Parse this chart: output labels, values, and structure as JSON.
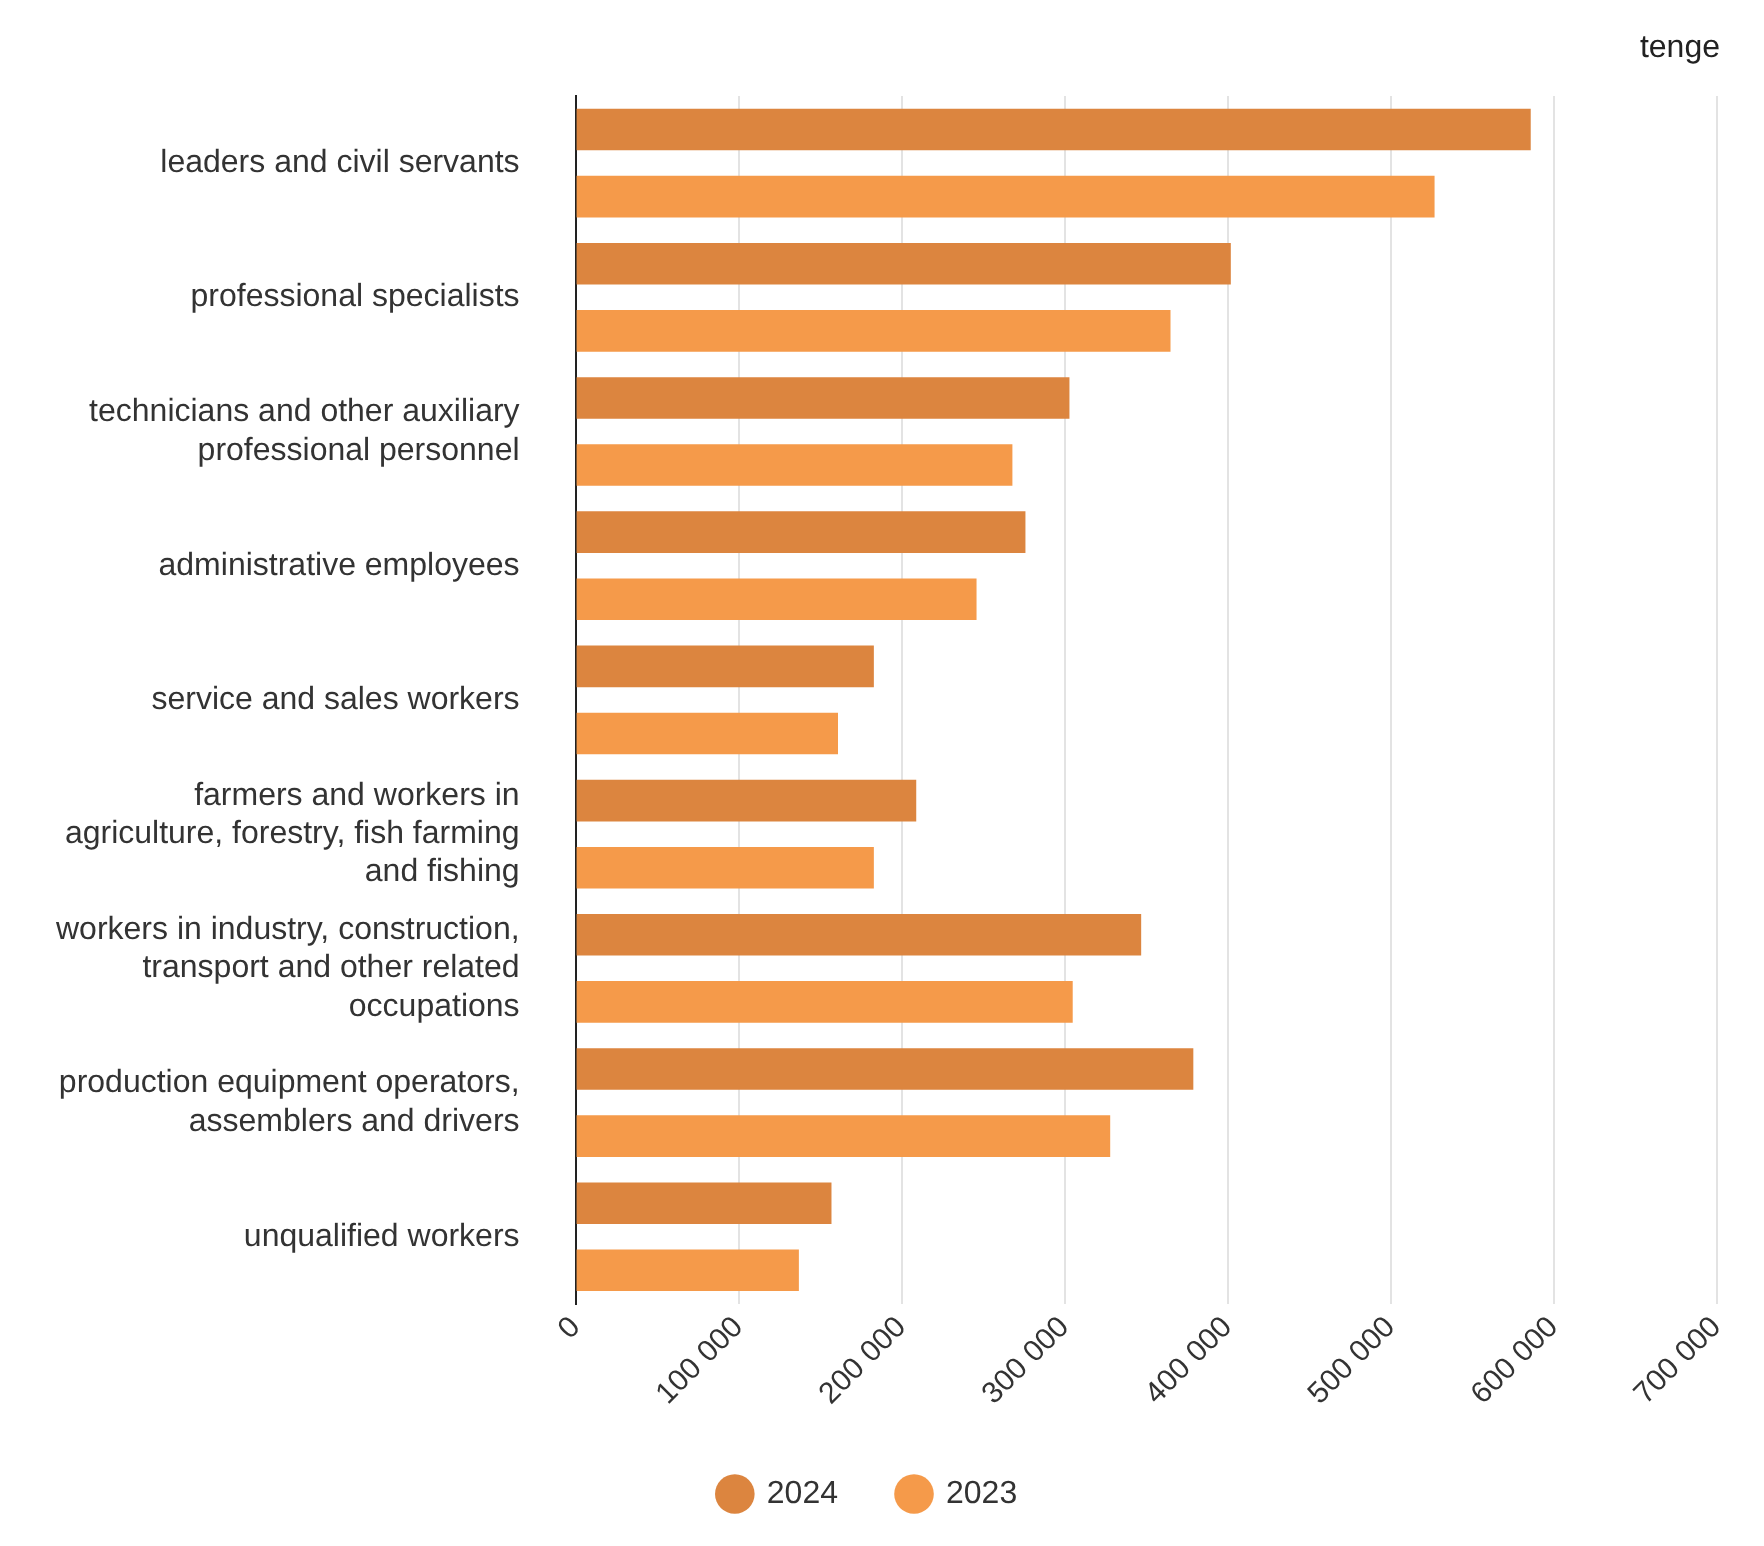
{
  "chart_data": {
    "type": "bar",
    "orientation": "horizontal",
    "xlabel": "tenge",
    "categories": [
      "leaders and civil servants",
      "professional specialists",
      "technicians and other auxiliary\nprofessional personnel",
      "administrative employees",
      "service and sales workers",
      "farmers and workers in\nagriculture, forestry, fish farming\nand fishing",
      "workers in industry, construction,\ntransport and other related\noccupations",
      "production equipment operators,\nassemblers and drivers",
      "unqualified workers"
    ],
    "series": [
      {
        "name": "2024",
        "color": "#dc853f",
        "values": [
          586000,
          402000,
          303000,
          276000,
          183000,
          209000,
          347000,
          379000,
          157000
        ]
      },
      {
        "name": "2023",
        "color": "#f59a4a",
        "values": [
          527000,
          365000,
          268000,
          246000,
          161000,
          183000,
          305000,
          328000,
          137000
        ]
      }
    ],
    "xlim": [
      0,
      700000
    ],
    "xticks": [
      0,
      {
        "value": 100000,
        "label": "100 000"
      },
      {
        "value": 200000,
        "label": "200 000"
      },
      {
        "value": 300000,
        "label": "300 000"
      },
      {
        "value": 400000,
        "label": "400 000"
      },
      {
        "value": 500000,
        "label": "500 000"
      },
      {
        "value": 600000,
        "label": "600 000"
      },
      {
        "value": 700000,
        "label": "700 000"
      }
    ],
    "grid": "x",
    "legend": "bottom"
  }
}
